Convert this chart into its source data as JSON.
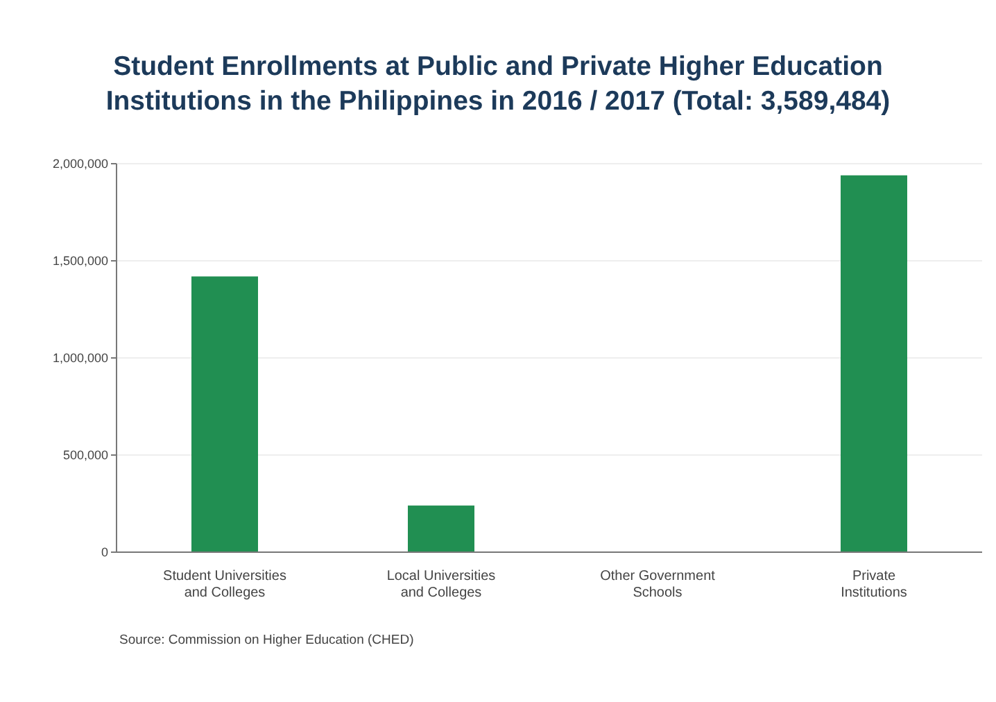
{
  "chart_data": {
    "type": "bar",
    "title": "Student Enrollments at Public and Private Higher Education Institutions in the Philippines in 2016 / 2017 (Total: 3,589,484)",
    "categories": [
      "Student Universities and Colleges",
      "Local Universities and Colleges",
      "Other Government Schools",
      "Private Institutions"
    ],
    "values": [
      1420000,
      240000,
      0,
      1940000
    ],
    "color": "#218f52",
    "ylim": [
      0,
      2000000
    ],
    "yticks": [
      0,
      {
        "value": 500000,
        "label": "500,000"
      },
      {
        "value": 1000000,
        "label": "1,000,000"
      },
      {
        "value": 1500000,
        "label": "1,500,000"
      },
      {
        "value": 2000000,
        "label": "2,000,000"
      }
    ],
    "grid": "y",
    "annotations": [
      "Source: Commission on Higher Education (CHED)"
    ]
  }
}
